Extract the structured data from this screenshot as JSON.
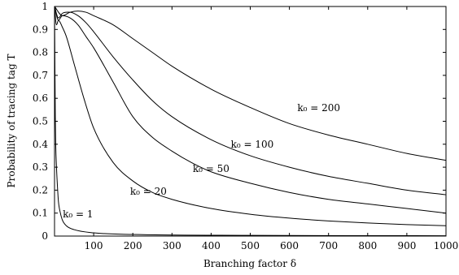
{
  "chart_data": {
    "type": "line",
    "title": "",
    "xlabel": "Branching factor δ",
    "ylabel": "Probability of tracing tag T",
    "xlim": [
      0,
      1000
    ],
    "ylim": [
      0,
      1
    ],
    "xticks": [
      "100",
      "200",
      "300",
      "400",
      "500",
      "600",
      "700",
      "800",
      "900",
      "1000"
    ],
    "yticks": [
      "0",
      "0.1",
      "0.2",
      "0.3",
      "0.4",
      "0.5",
      "0.6",
      "0.7",
      "0.8",
      "0.9",
      "1"
    ],
    "grid": false,
    "legend": "none",
    "series": [
      {
        "name": "k₀ = 1",
        "x": [
          0,
          1,
          2,
          3,
          5,
          8,
          10,
          15,
          20,
          30,
          50,
          100,
          200,
          500,
          1000
        ],
        "y": [
          1.0,
          0.74,
          0.52,
          0.4,
          0.3,
          0.2,
          0.15,
          0.1,
          0.07,
          0.045,
          0.028,
          0.014,
          0.007,
          0.003,
          0.0015
        ]
      },
      {
        "name": "k₀ = 20",
        "x": [
          0,
          5,
          10,
          20,
          30,
          50,
          75,
          100,
          150,
          200,
          250,
          300,
          400,
          500,
          600,
          700,
          800,
          900,
          1000
        ],
        "y": [
          1.0,
          0.92,
          0.94,
          0.91,
          0.87,
          0.75,
          0.6,
          0.47,
          0.32,
          0.24,
          0.19,
          0.16,
          0.12,
          0.095,
          0.078,
          0.066,
          0.057,
          0.05,
          0.045
        ]
      },
      {
        "name": "k₀ = 50",
        "x": [
          0,
          10,
          20,
          40,
          60,
          80,
          100,
          150,
          200,
          250,
          300,
          350,
          400,
          500,
          600,
          700,
          800,
          900,
          1000
        ],
        "y": [
          1.0,
          0.94,
          0.96,
          0.95,
          0.92,
          0.87,
          0.82,
          0.67,
          0.52,
          0.43,
          0.37,
          0.32,
          0.28,
          0.23,
          0.19,
          0.16,
          0.14,
          0.12,
          0.1
        ]
      },
      {
        "name": "k₀ = 100",
        "x": [
          0,
          10,
          20,
          40,
          60,
          80,
          100,
          150,
          200,
          250,
          300,
          400,
          500,
          600,
          700,
          800,
          900,
          1000
        ],
        "y": [
          1.0,
          0.95,
          0.97,
          0.975,
          0.96,
          0.93,
          0.89,
          0.78,
          0.68,
          0.59,
          0.52,
          0.42,
          0.35,
          0.3,
          0.26,
          0.23,
          0.2,
          0.18
        ]
      },
      {
        "name": "k₀ = 200",
        "x": [
          0,
          20,
          40,
          60,
          80,
          100,
          150,
          200,
          250,
          300,
          400,
          500,
          600,
          700,
          800,
          900,
          1000
        ],
        "y": [
          1.0,
          0.96,
          0.975,
          0.98,
          0.975,
          0.96,
          0.92,
          0.86,
          0.8,
          0.74,
          0.64,
          0.56,
          0.49,
          0.44,
          0.4,
          0.36,
          0.33
        ]
      }
    ],
    "annotations": [
      {
        "text": "k₀ = 1",
        "x": 60,
        "y": 0.082
      },
      {
        "text": "k₀ = 20",
        "x": 240,
        "y": 0.18
      },
      {
        "text": "k₀ = 50",
        "x": 400,
        "y": 0.28
      },
      {
        "text": "k₀ = 100",
        "x": 505,
        "y": 0.385
      },
      {
        "text": "k₀ = 200",
        "x": 675,
        "y": 0.545
      }
    ]
  }
}
